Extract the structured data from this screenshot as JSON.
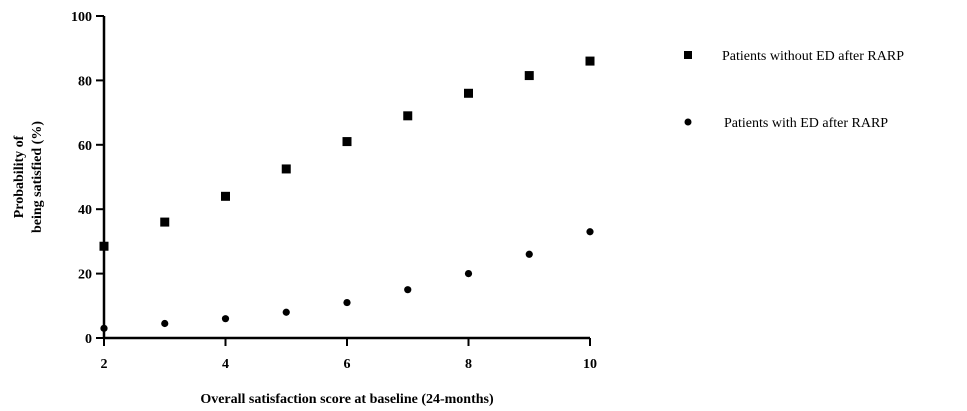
{
  "chart_data": {
    "type": "scatter",
    "title": "",
    "xlabel": "Overall satisfaction score at baseline (24-months)",
    "ylabel_lines": [
      "Probability of",
      "being satisfied (%)"
    ],
    "xlim": [
      2,
      10
    ],
    "ylim": [
      0,
      100
    ],
    "x_ticks": [
      2,
      4,
      6,
      8,
      10
    ],
    "y_ticks": [
      0,
      20,
      40,
      60,
      80,
      100
    ],
    "grid": false,
    "legend_position": "right",
    "series": [
      {
        "name": "Patients without ED after RARP",
        "marker": "square",
        "color": "#000000",
        "x": [
          2,
          3,
          4,
          5,
          6,
          7,
          8,
          9,
          10
        ],
        "y": [
          28.5,
          36,
          44,
          52.5,
          61,
          69,
          76,
          81.5,
          86
        ]
      },
      {
        "name": "Patients with ED after RARP",
        "marker": "circle",
        "color": "#000000",
        "x": [
          2,
          3,
          4,
          5,
          6,
          7,
          8,
          9,
          10
        ],
        "y": [
          3,
          4.5,
          6,
          8,
          11,
          15,
          20,
          26,
          33
        ]
      }
    ]
  }
}
